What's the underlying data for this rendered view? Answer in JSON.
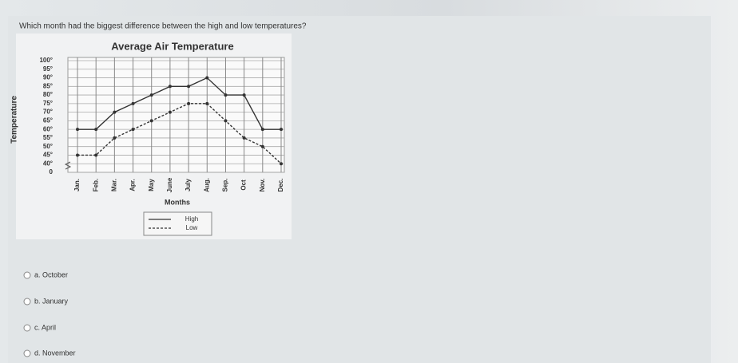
{
  "question": "Which month had the biggest difference between the high and low temperatures?",
  "chart_data": {
    "type": "line",
    "title": "Average Air Temperature",
    "x_label": "Months",
    "y_label": "Temperature",
    "categories": [
      "Jan.",
      "Feb.",
      "Mar.",
      "Apr.",
      "May",
      "June",
      "July",
      "Aug.",
      "Sep.",
      "Oct",
      "Nov.",
      "Dec."
    ],
    "series": [
      {
        "name": "High",
        "color": "#333333",
        "line_style": "solid",
        "values": [
          60,
          60,
          70,
          75,
          80,
          85,
          85,
          90,
          80,
          80,
          60,
          60
        ]
      },
      {
        "name": "Low",
        "color": "#333333",
        "line_style": "dashed",
        "values": [
          45,
          45,
          55,
          60,
          65,
          70,
          75,
          75,
          65,
          55,
          50,
          40
        ]
      }
    ],
    "ylim": [
      0,
      100
    ],
    "yticks": [
      {
        "value": 0,
        "label": "0"
      },
      {
        "value": 40,
        "label": "40°"
      },
      {
        "value": 45,
        "label": "45°"
      },
      {
        "value": 50,
        "label": "50°"
      },
      {
        "value": 55,
        "label": "55°"
      },
      {
        "value": 60,
        "label": "60°"
      },
      {
        "value": 65,
        "label": "65°"
      },
      {
        "value": 70,
        "label": "70°"
      },
      {
        "value": 75,
        "label": "75°"
      },
      {
        "value": 80,
        "label": "80°"
      },
      {
        "value": 85,
        "label": "85°"
      },
      {
        "value": 90,
        "label": "90°"
      },
      {
        "value": 95,
        "label": "95°"
      },
      {
        "value": 100,
        "label": "100°"
      }
    ],
    "axis_break": true,
    "grid": true
  },
  "options": [
    "a. October",
    "b. January",
    "c. April",
    "d. November"
  ]
}
